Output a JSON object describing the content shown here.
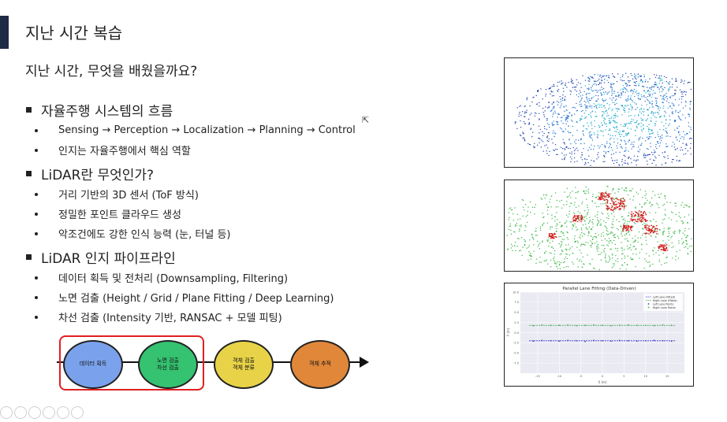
{
  "slide": {
    "title": "지난 시간 복습",
    "subtitle": "지난 시간, 무엇을 배웠을까요?"
  },
  "bullets": [
    {
      "heading": "자율주행 시스템의 흐름",
      "items": [
        "Sensing → Perception → Localization → Planning → Control",
        "인지는 자율주행에서 핵심 역할"
      ]
    },
    {
      "heading": "LiDAR란 무엇인가?",
      "items": [
        "거리 기반의 3D 센서 (ToF 방식)",
        "정밀한 포인트 클라우드 생성",
        "악조건에도 강한 인식 능력 (눈, 터널 등)"
      ]
    },
    {
      "heading": "LiDAR 인지 파이프라인",
      "items": [
        "데이터 획득 및 전처리 (Downsampling, Filtering)",
        "노면 검출 (Height / Grid / Plane Fitting / Deep Learning)",
        "차선 검출 (Intensity 기반, RANSAC + 모델 피팅)"
      ]
    }
  ],
  "pipeline": {
    "nodes": [
      {
        "label": "데이터 획득",
        "color": "#7aa2ec"
      },
      {
        "label": "노면 검출\n차선 검출",
        "color": "#35c271"
      },
      {
        "label": "객체 검출\n객체 분류",
        "color": "#e8d348"
      },
      {
        "label": "객체 추적",
        "color": "#e0873a"
      }
    ],
    "highlight_color": "#e02020"
  },
  "images": {
    "chart_title": "Parallel Lane Fitting (Data-Driven)",
    "legend": [
      "Left Lane (Fitted)",
      "Right Lane (Fitted)",
      "Left Lane Points",
      "Right Lane Points"
    ],
    "y_ticks": [
      "10.0",
      "7.5",
      "5.0",
      "2.5",
      "0.0",
      "-2.5",
      "-5.0",
      "-7.5"
    ],
    "x_ticks": [
      "-15",
      "-10",
      "-5",
      "0",
      "5",
      "10",
      "15"
    ],
    "xlabel": "X (m)",
    "ylabel": "Y (m)",
    "colors": {
      "left": "#3b36c9",
      "right": "#3aa84a"
    }
  },
  "chart_data": {
    "type": "scatter",
    "title": "Parallel Lane Fitting (Data-Driven)",
    "xlabel": "X (m)",
    "ylabel": "Y (m)",
    "xlim": [
      -19,
      19
    ],
    "ylim": [
      -10,
      10
    ],
    "series": [
      {
        "name": "Left Lane (Fitted)",
        "x": [
          -17,
          17
        ],
        "y": [
          -2.0,
          -2.0
        ]
      },
      {
        "name": "Right Lane (Fitted)",
        "x": [
          -17,
          17
        ],
        "y": [
          1.8,
          1.8
        ]
      },
      {
        "name": "Left Lane Points",
        "x": [
          -16,
          -14,
          -12,
          -10,
          -8,
          -6,
          -4,
          -2,
          0,
          2,
          4,
          6,
          8,
          10,
          12,
          14,
          16
        ],
        "y": [
          -2.1,
          -1.9,
          -2.0,
          -2.1,
          -1.9,
          -2.0,
          -2.2,
          -1.9,
          -2.0,
          -2.1,
          -1.9,
          -2.0,
          -2.1,
          -2.0,
          -1.9,
          -2.0,
          -2.1
        ]
      },
      {
        "name": "Right Lane Points",
        "x": [
          -16,
          -14,
          -12,
          -10,
          -8,
          -6,
          -4,
          -2,
          0,
          2,
          4,
          6,
          8,
          10,
          12,
          14,
          16
        ],
        "y": [
          1.7,
          1.9,
          1.8,
          1.8,
          1.9,
          1.7,
          1.8,
          1.9,
          1.8,
          1.7,
          1.8,
          1.9,
          1.8,
          1.8,
          1.7,
          1.9,
          1.8
        ]
      }
    ]
  }
}
